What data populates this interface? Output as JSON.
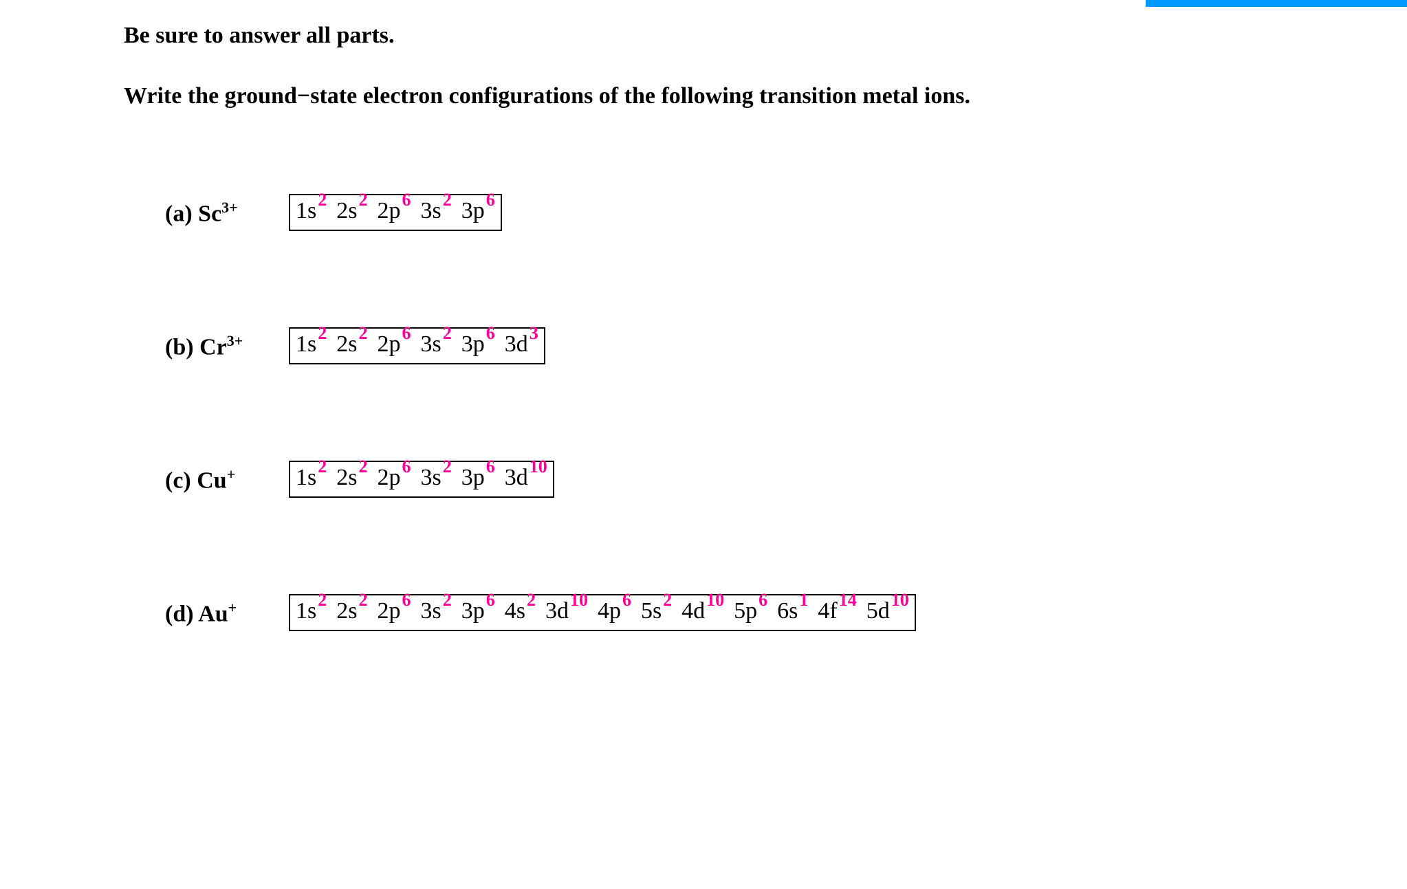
{
  "accent_bar_color": "#0099ff",
  "superscript_color": "#ff0099",
  "text_color": "#000000",
  "background_color": "#ffffff",
  "font_family": "Times New Roman",
  "instruction": "Be sure to answer all parts.",
  "prompt": "Write the ground−state electron configurations of the following transition metal ions.",
  "questions": [
    {
      "label_prefix": "(a) ",
      "element": "Sc",
      "charge": "3+",
      "config": [
        {
          "orbital": "1s",
          "exp": "2"
        },
        {
          "orbital": "2s",
          "exp": "2"
        },
        {
          "orbital": "2p",
          "exp": "6"
        },
        {
          "orbital": "3s",
          "exp": "2"
        },
        {
          "orbital": "3p",
          "exp": "6"
        }
      ]
    },
    {
      "label_prefix": "(b) ",
      "element": "Cr",
      "charge": "3+",
      "config": [
        {
          "orbital": "1s",
          "exp": "2"
        },
        {
          "orbital": "2s",
          "exp": "2"
        },
        {
          "orbital": "2p",
          "exp": "6"
        },
        {
          "orbital": "3s",
          "exp": "2"
        },
        {
          "orbital": "3p",
          "exp": "6"
        },
        {
          "orbital": "3d",
          "exp": "3"
        }
      ]
    },
    {
      "label_prefix": "(c) ",
      "element": "Cu",
      "charge": "+",
      "config": [
        {
          "orbital": "1s",
          "exp": "2"
        },
        {
          "orbital": "2s",
          "exp": "2"
        },
        {
          "orbital": "2p",
          "exp": "6"
        },
        {
          "orbital": "3s",
          "exp": "2"
        },
        {
          "orbital": "3p",
          "exp": "6"
        },
        {
          "orbital": "3d",
          "exp": "10"
        }
      ]
    },
    {
      "label_prefix": "(d) ",
      "element": "Au",
      "charge": "+",
      "config": [
        {
          "orbital": "1s",
          "exp": "2"
        },
        {
          "orbital": "2s",
          "exp": "2"
        },
        {
          "orbital": "2p",
          "exp": "6"
        },
        {
          "orbital": "3s",
          "exp": "2"
        },
        {
          "orbital": "3p",
          "exp": "6"
        },
        {
          "orbital": "4s",
          "exp": "2"
        },
        {
          "orbital": "3d",
          "exp": "10"
        },
        {
          "orbital": "4p",
          "exp": "6"
        },
        {
          "orbital": "5s",
          "exp": "2"
        },
        {
          "orbital": "4d",
          "exp": "10"
        },
        {
          "orbital": "5p",
          "exp": "6"
        },
        {
          "orbital": "6s",
          "exp": "1"
        },
        {
          "orbital": "4f",
          "exp": "14"
        },
        {
          "orbital": "5d",
          "exp": "10"
        }
      ]
    }
  ]
}
